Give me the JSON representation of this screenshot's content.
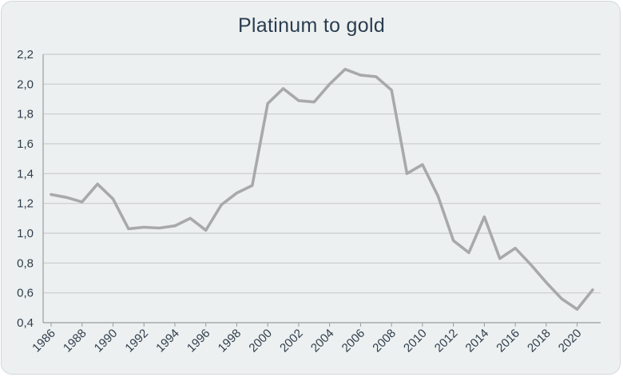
{
  "chart_data": {
    "type": "line",
    "title": "Platinum to gold",
    "xlabel": "",
    "ylabel": "",
    "x": [
      1986,
      1987,
      1988,
      1989,
      1990,
      1991,
      1992,
      1993,
      1994,
      1995,
      1996,
      1997,
      1998,
      1999,
      2000,
      2001,
      2002,
      2003,
      2004,
      2005,
      2006,
      2007,
      2008,
      2009,
      2010,
      2011,
      2012,
      2013,
      2014,
      2015,
      2016,
      2017,
      2018,
      2019,
      2020,
      2021
    ],
    "series": [
      {
        "values": [
          1.26,
          1.24,
          1.21,
          1.33,
          1.23,
          1.03,
          1.04,
          1.035,
          1.05,
          1.1,
          1.02,
          1.19,
          1.27,
          1.32,
          1.87,
          1.97,
          1.89,
          1.88,
          2.0,
          2.1,
          2.06,
          2.05,
          1.96,
          1.4,
          1.46,
          1.25,
          0.95,
          0.87,
          1.11,
          0.83,
          0.9,
          0.79,
          0.67,
          0.56,
          0.49,
          0.62
        ],
        "color": "#a8a9ab"
      }
    ],
    "ylim": [
      0.4,
      2.2
    ],
    "y_ticks": [
      "0,4",
      "0,6",
      "0,8",
      "1,0",
      "1,2",
      "1,4",
      "1,6",
      "1,8",
      "2,0",
      "2,2"
    ],
    "x_ticks": [
      "1986",
      "1988",
      "1990",
      "1992",
      "1994",
      "1996",
      "1998",
      "2000",
      "2002",
      "2004",
      "2006",
      "2008",
      "2010",
      "2012",
      "2014",
      "2016",
      "2018",
      "2020"
    ],
    "grid": true,
    "legend": "none",
    "gridline_color": "#c9cccd",
    "axis_color": "#9a9c9e",
    "text_color": "#2e3d4c",
    "title_color": "#2a3d50",
    "background_color": "#edf0f0"
  }
}
